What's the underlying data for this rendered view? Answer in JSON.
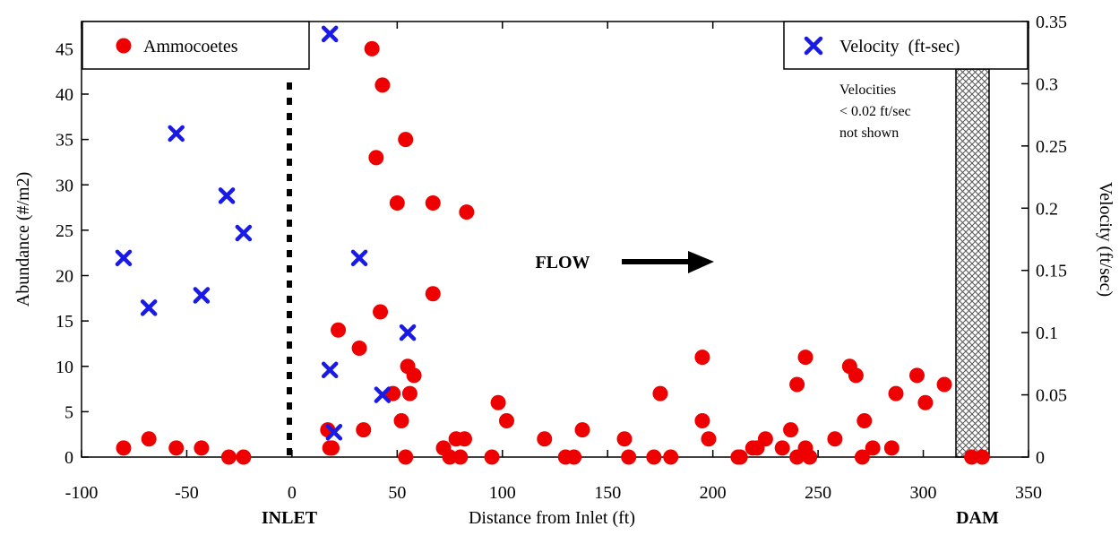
{
  "chart_data": {
    "type": "scatter",
    "xlabel": "Distance from Inlet (ft)",
    "ylabel": "Abundance (#/m2)",
    "y2label": "Velocity (ft/sec)",
    "xlim": [
      -100,
      350
    ],
    "ylim": [
      0,
      48
    ],
    "y2lim": [
      0,
      0.35
    ],
    "xticks": [
      "-100",
      "-50",
      "0",
      "50",
      "100",
      "150",
      "200",
      "250",
      "300",
      "350"
    ],
    "yticks": [
      "0",
      "5",
      "10",
      "15",
      "20",
      "25",
      "30",
      "35",
      "40",
      "45"
    ],
    "y2ticks": [
      "0",
      "0.05",
      "0.1",
      "0.15",
      "0.2",
      "0.25",
      "0.3",
      "0.35"
    ],
    "grid": false,
    "inlet_label": "INLET",
    "dam_label": "DAM",
    "flow_label": "FLOW",
    "velocity_note": [
      "Velocities",
      "< 0.02 ft/sec",
      "not shown"
    ],
    "colors": {
      "ammocoetes": "#ee0000",
      "velocity": "#1a1ae6"
    },
    "series": [
      {
        "name": "Ammocoetes",
        "axis": "left",
        "marker": "circle",
        "points": [
          [
            -80,
            1
          ],
          [
            -68,
            2
          ],
          [
            -55,
            1
          ],
          [
            -43,
            1
          ],
          [
            -30,
            0
          ],
          [
            -23,
            0
          ],
          [
            17,
            3
          ],
          [
            18,
            1
          ],
          [
            19,
            1
          ],
          [
            22,
            14
          ],
          [
            32,
            12
          ],
          [
            34,
            3
          ],
          [
            38,
            45
          ],
          [
            40,
            33
          ],
          [
            42,
            16
          ],
          [
            43,
            41
          ],
          [
            48,
            7
          ],
          [
            50,
            28
          ],
          [
            52,
            4
          ],
          [
            54,
            0
          ],
          [
            54,
            35
          ],
          [
            55,
            10
          ],
          [
            56,
            7
          ],
          [
            58,
            9
          ],
          [
            67,
            28
          ],
          [
            67,
            18
          ],
          [
            72,
            1
          ],
          [
            75,
            0
          ],
          [
            78,
            2
          ],
          [
            80,
            0
          ],
          [
            82,
            2
          ],
          [
            83,
            27
          ],
          [
            95,
            0
          ],
          [
            98,
            6
          ],
          [
            102,
            4
          ],
          [
            120,
            2
          ],
          [
            130,
            0
          ],
          [
            134,
            0
          ],
          [
            138,
            3
          ],
          [
            158,
            2
          ],
          [
            160,
            0
          ],
          [
            172,
            0
          ],
          [
            175,
            7
          ],
          [
            180,
            0
          ],
          [
            195,
            11
          ],
          [
            195,
            4
          ],
          [
            198,
            2
          ],
          [
            212,
            0
          ],
          [
            213,
            0
          ],
          [
            219,
            1
          ],
          [
            221,
            1
          ],
          [
            225,
            2
          ],
          [
            233,
            1
          ],
          [
            237,
            3
          ],
          [
            240,
            0
          ],
          [
            240,
            8
          ],
          [
            244,
            11
          ],
          [
            244,
            1
          ],
          [
            246,
            0
          ],
          [
            258,
            2
          ],
          [
            265,
            10
          ],
          [
            268,
            9
          ],
          [
            271,
            0
          ],
          [
            272,
            4
          ],
          [
            276,
            1
          ],
          [
            285,
            1
          ],
          [
            287,
            7
          ],
          [
            297,
            9
          ],
          [
            301,
            6
          ],
          [
            310,
            8
          ],
          [
            323,
            0
          ],
          [
            328,
            0
          ]
        ]
      },
      {
        "name": "Velocity  (ft-sec)",
        "axis": "right",
        "marker": "x",
        "points": [
          [
            -80,
            0.16
          ],
          [
            -68,
            0.12
          ],
          [
            -55,
            0.26
          ],
          [
            -43,
            0.13
          ],
          [
            -31,
            0.21
          ],
          [
            -23,
            0.18
          ],
          [
            18,
            0.34
          ],
          [
            18,
            0.07
          ],
          [
            20,
            0.02
          ],
          [
            32,
            0.16
          ],
          [
            43,
            0.05
          ],
          [
            55,
            0.1
          ]
        ]
      }
    ]
  }
}
